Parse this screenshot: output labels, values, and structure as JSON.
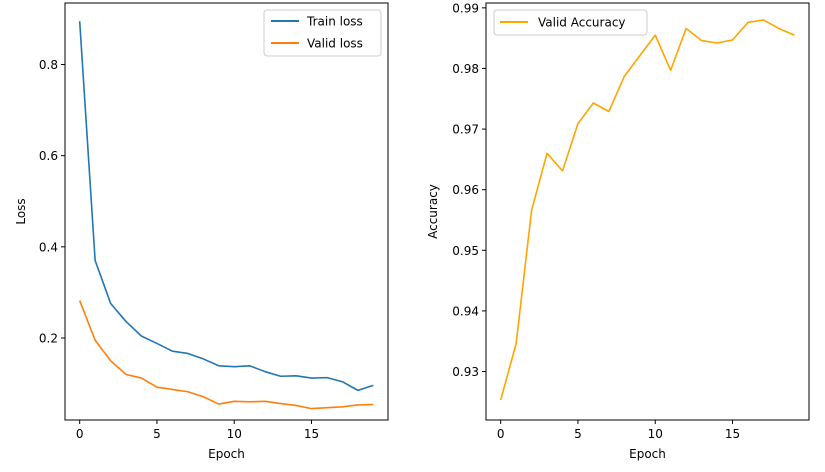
{
  "chart_data": [
    {
      "type": "line",
      "xlabel": "Epoch",
      "ylabel": "Loss",
      "xlim": [
        -0.95,
        19.95
      ],
      "ylim": [
        0.02,
        0.935
      ],
      "xticks": [
        0,
        5,
        10,
        15
      ],
      "yticks": [
        0.2,
        0.4,
        0.6,
        0.8
      ],
      "x_tick_labels": [
        "0",
        "5",
        "10",
        "15"
      ],
      "y_tick_labels": [
        "0.2",
        "0.4",
        "0.6",
        "0.8"
      ],
      "grid": false,
      "legend_position": "top-right",
      "x": [
        0,
        1,
        2,
        3,
        4,
        5,
        6,
        7,
        8,
        9,
        10,
        11,
        12,
        13,
        14,
        15,
        16,
        17,
        18,
        19
      ],
      "series": [
        {
          "name": "Train loss",
          "color": "#1f77b4",
          "values": [
            0.895,
            0.37,
            0.276,
            0.236,
            0.204,
            0.188,
            0.171,
            0.166,
            0.154,
            0.139,
            0.137,
            0.139,
            0.126,
            0.116,
            0.117,
            0.112,
            0.113,
            0.104,
            0.085,
            0.096
          ]
        },
        {
          "name": "Valid loss",
          "color": "#ff7f0e",
          "values": [
            0.282,
            0.195,
            0.15,
            0.12,
            0.112,
            0.092,
            0.087,
            0.082,
            0.071,
            0.055,
            0.061,
            0.06,
            0.061,
            0.056,
            0.052,
            0.045,
            0.047,
            0.049,
            0.053,
            0.054
          ]
        }
      ]
    },
    {
      "type": "line",
      "xlabel": "Epoch",
      "ylabel": "Accuracy",
      "xlim": [
        -0.95,
        19.95
      ],
      "ylim": [
        0.922,
        0.9908
      ],
      "xticks": [
        0,
        5,
        10,
        15
      ],
      "yticks": [
        0.93,
        0.94,
        0.95,
        0.96,
        0.97,
        0.98,
        0.99
      ],
      "x_tick_labels": [
        "0",
        "5",
        "10",
        "15"
      ],
      "y_tick_labels": [
        "0.93",
        "0.94",
        "0.95",
        "0.96",
        "0.97",
        "0.98",
        "0.99"
      ],
      "grid": false,
      "legend_position": "top-left",
      "x": [
        0,
        1,
        2,
        3,
        4,
        5,
        6,
        7,
        8,
        9,
        10,
        11,
        12,
        13,
        14,
        15,
        16,
        17,
        18,
        19
      ],
      "series": [
        {
          "name": "Valid Accuracy",
          "color": "#ffa500",
          "values": [
            0.9253,
            0.9346,
            0.9566,
            0.966,
            0.9631,
            0.9709,
            0.9743,
            0.9729,
            0.9787,
            0.9821,
            0.9855,
            0.9797,
            0.9866,
            0.9846,
            0.9842,
            0.9847,
            0.9876,
            0.988,
            0.9866,
            0.9855
          ]
        }
      ]
    }
  ]
}
